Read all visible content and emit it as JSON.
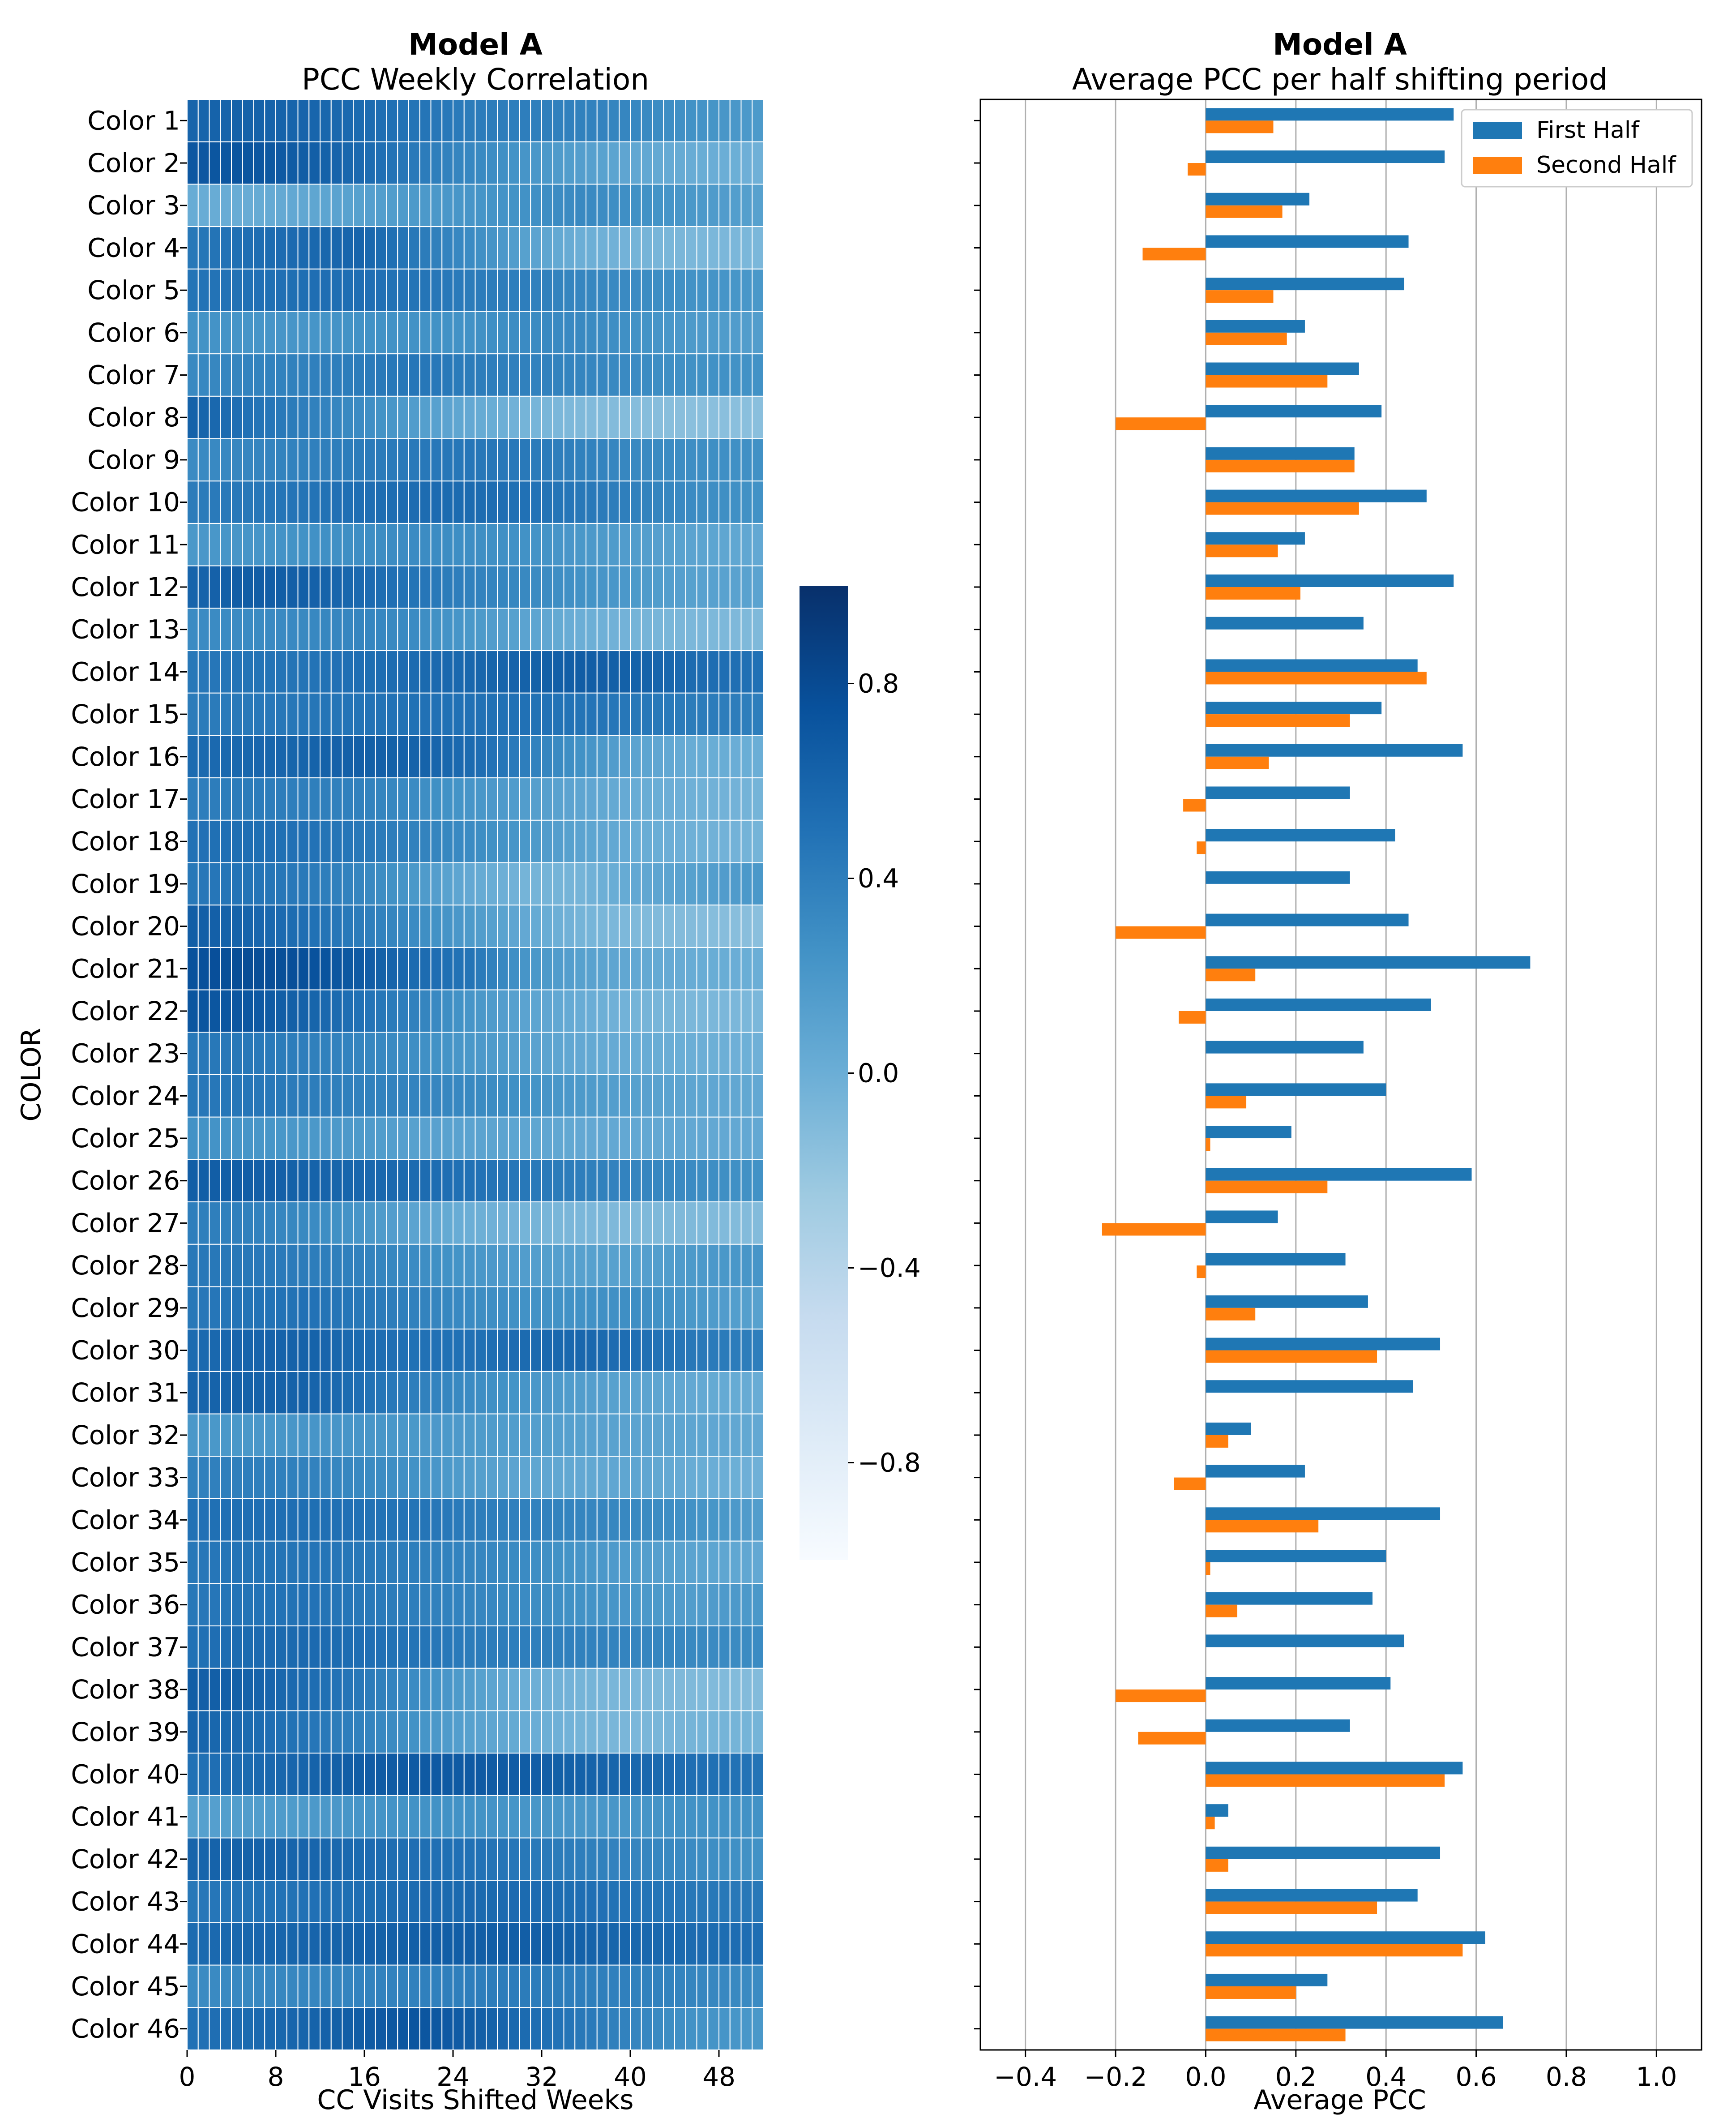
{
  "chart_data": [
    {
      "type": "heatmap",
      "title": "Model A",
      "subtitle": "PCC Weekly Correlation",
      "xlabel": "CC Visits Shifted Weeks",
      "ylabel": "COLOR",
      "x_ticks": [
        "0",
        "8",
        "16",
        "24",
        "32",
        "40",
        "48"
      ],
      "x_range": [
        0,
        52
      ],
      "rows": [
        "Color 1",
        "Color 2",
        "Color 3",
        "Color 4",
        "Color 5",
        "Color 6",
        "Color 7",
        "Color 8",
        "Color 9",
        "Color 10",
        "Color 11",
        "Color 12",
        "Color 13",
        "Color 14",
        "Color 15",
        "Color 16",
        "Color 17",
        "Color 18",
        "Color 19",
        "Color 20",
        "Color 21",
        "Color 22",
        "Color 23",
        "Color 24",
        "Color 25",
        "Color 26",
        "Color 27",
        "Color 28",
        "Color 29",
        "Color 30",
        "Color 31",
        "Color 32",
        "Color 33",
        "Color 34",
        "Color 35",
        "Color 36",
        "Color 37",
        "Color 38",
        "Color 39",
        "Color 40",
        "Color 41",
        "Color 42",
        "Color 43",
        "Color 44",
        "Color 45",
        "Color 46"
      ],
      "row_keypoints": [
        [
          0.6,
          0.62,
          0.6,
          0.55,
          0.48,
          0.42,
          0.4,
          0.38,
          0.33,
          0.25,
          0.18
        ],
        [
          0.7,
          0.72,
          0.66,
          0.56,
          0.44,
          0.33,
          0.22,
          0.14,
          0.06,
          0.02,
          -0.02
        ],
        [
          0.02,
          0.02,
          0.06,
          0.12,
          0.18,
          0.22,
          0.25,
          0.32,
          0.26,
          0.2,
          0.12
        ],
        [
          0.45,
          0.52,
          0.56,
          0.6,
          0.45,
          0.3,
          0.12,
          0.0,
          -0.05,
          -0.08,
          -0.08
        ],
        [
          0.48,
          0.5,
          0.52,
          0.52,
          0.48,
          0.42,
          0.4,
          0.34,
          0.3,
          0.25,
          0.2
        ],
        [
          0.25,
          0.22,
          0.22,
          0.25,
          0.25,
          0.25,
          0.3,
          0.32,
          0.25,
          0.18,
          0.15
        ],
        [
          0.32,
          0.36,
          0.38,
          0.42,
          0.46,
          0.42,
          0.38,
          0.35,
          0.3,
          0.26,
          0.25
        ],
        [
          0.62,
          0.5,
          0.4,
          0.3,
          0.16,
          0.05,
          -0.05,
          -0.1,
          -0.13,
          -0.15,
          -0.15
        ],
        [
          0.3,
          0.34,
          0.38,
          0.42,
          0.44,
          0.46,
          0.44,
          0.38,
          0.32,
          0.28,
          0.26
        ],
        [
          0.42,
          0.45,
          0.48,
          0.52,
          0.54,
          0.55,
          0.5,
          0.45,
          0.38,
          0.3,
          0.25
        ],
        [
          0.2,
          0.22,
          0.25,
          0.28,
          0.3,
          0.28,
          0.25,
          0.2,
          0.15,
          0.1,
          0.05
        ],
        [
          0.6,
          0.66,
          0.64,
          0.56,
          0.48,
          0.38,
          0.32,
          0.25,
          0.18,
          0.12,
          0.1
        ],
        [
          0.3,
          0.3,
          0.32,
          0.35,
          0.3,
          0.2,
          0.1,
          0.0,
          -0.05,
          -0.08,
          -0.1
        ],
        [
          0.45,
          0.48,
          0.48,
          0.52,
          0.55,
          0.58,
          0.62,
          0.66,
          0.62,
          0.55,
          0.5
        ],
        [
          0.42,
          0.44,
          0.46,
          0.48,
          0.5,
          0.5,
          0.5,
          0.48,
          0.45,
          0.42,
          0.4
        ],
        [
          0.55,
          0.58,
          0.6,
          0.64,
          0.62,
          0.55,
          0.4,
          0.25,
          0.1,
          0.02,
          0.0
        ],
        [
          0.4,
          0.42,
          0.4,
          0.38,
          0.3,
          0.22,
          0.15,
          0.08,
          0.02,
          -0.02,
          -0.05
        ],
        [
          0.5,
          0.52,
          0.5,
          0.45,
          0.38,
          0.3,
          0.2,
          0.1,
          0.02,
          -0.02,
          -0.05
        ],
        [
          0.45,
          0.48,
          0.44,
          0.35,
          0.2,
          0.05,
          -0.05,
          -0.05,
          0.05,
          0.12,
          0.2
        ],
        [
          0.65,
          0.6,
          0.52,
          0.42,
          0.3,
          0.18,
          0.05,
          -0.05,
          -0.1,
          -0.12,
          -0.15
        ],
        [
          0.75,
          0.78,
          0.76,
          0.68,
          0.55,
          0.48,
          0.22,
          0.12,
          0.05,
          0.02,
          0.0
        ],
        [
          0.72,
          0.7,
          0.62,
          0.5,
          0.38,
          0.22,
          0.1,
          0.02,
          -0.05,
          -0.08,
          -0.08
        ],
        [
          0.45,
          0.45,
          0.4,
          0.35,
          0.28,
          0.2,
          0.12,
          0.05,
          0.02,
          0.0,
          -0.02
        ],
        [
          0.45,
          0.46,
          0.42,
          0.38,
          0.36,
          0.32,
          0.25,
          0.18,
          0.12,
          0.08,
          0.05
        ],
        [
          0.25,
          0.22,
          0.2,
          0.18,
          0.12,
          0.1,
          0.08,
          0.05,
          0.05,
          0.05,
          0.05
        ],
        [
          0.65,
          0.65,
          0.62,
          0.58,
          0.55,
          0.5,
          0.45,
          0.4,
          0.35,
          0.3,
          0.25
        ],
        [
          0.4,
          0.38,
          0.32,
          0.22,
          0.1,
          0.0,
          -0.05,
          -0.08,
          -0.1,
          -0.1,
          -0.12
        ],
        [
          0.45,
          0.45,
          0.42,
          0.38,
          0.3,
          0.22,
          0.15,
          0.12,
          0.12,
          0.18,
          0.22
        ],
        [
          0.45,
          0.48,
          0.5,
          0.45,
          0.38,
          0.3,
          0.25,
          0.25,
          0.28,
          0.2,
          0.12
        ],
        [
          0.55,
          0.6,
          0.62,
          0.55,
          0.5,
          0.5,
          0.55,
          0.58,
          0.52,
          0.45,
          0.4
        ],
        [
          0.6,
          0.62,
          0.62,
          0.52,
          0.4,
          0.3,
          0.22,
          0.15,
          0.1,
          0.05,
          0.02
        ],
        [
          0.2,
          0.2,
          0.22,
          0.22,
          0.2,
          0.18,
          0.15,
          0.12,
          0.1,
          0.08,
          0.05
        ],
        [
          0.38,
          0.4,
          0.38,
          0.32,
          0.25,
          0.15,
          0.08,
          0.05,
          0.08,
          0.02,
          -0.02
        ],
        [
          0.5,
          0.52,
          0.52,
          0.5,
          0.48,
          0.42,
          0.38,
          0.35,
          0.32,
          0.25,
          0.15
        ],
        [
          0.45,
          0.48,
          0.48,
          0.45,
          0.4,
          0.35,
          0.3,
          0.22,
          0.15,
          0.1,
          0.05
        ],
        [
          0.45,
          0.48,
          0.5,
          0.45,
          0.4,
          0.35,
          0.3,
          0.25,
          0.2,
          0.15,
          0.2
        ],
        [
          0.5,
          0.55,
          0.56,
          0.52,
          0.48,
          0.42,
          0.4,
          0.38,
          0.35,
          0.32,
          0.3
        ],
        [
          0.65,
          0.62,
          0.55,
          0.45,
          0.3,
          0.15,
          0.0,
          -0.05,
          -0.08,
          -0.1,
          -0.12
        ],
        [
          0.6,
          0.55,
          0.48,
          0.38,
          0.25,
          0.12,
          0.02,
          -0.05,
          -0.08,
          -0.05,
          -0.05
        ],
        [
          0.5,
          0.55,
          0.6,
          0.66,
          0.68,
          0.68,
          0.66,
          0.62,
          0.58,
          0.52,
          0.48
        ],
        [
          0.12,
          0.15,
          0.18,
          0.22,
          0.25,
          0.25,
          0.22,
          0.2,
          0.22,
          0.25,
          0.25
        ],
        [
          0.6,
          0.62,
          0.6,
          0.55,
          0.52,
          0.5,
          0.45,
          0.4,
          0.35,
          0.3,
          0.25
        ],
        [
          0.45,
          0.48,
          0.5,
          0.52,
          0.55,
          0.56,
          0.55,
          0.52,
          0.48,
          0.45,
          0.45
        ],
        [
          0.55,
          0.58,
          0.6,
          0.62,
          0.64,
          0.65,
          0.65,
          0.62,
          0.58,
          0.55,
          0.52
        ],
        [
          0.3,
          0.32,
          0.34,
          0.36,
          0.38,
          0.4,
          0.42,
          0.4,
          0.38,
          0.35,
          0.3
        ],
        [
          0.5,
          0.55,
          0.6,
          0.66,
          0.72,
          0.66,
          0.55,
          0.45,
          0.35,
          0.25,
          0.2
        ]
      ],
      "row_keypoint_weeks": [
        0,
        5,
        10,
        15,
        20,
        25,
        30,
        35,
        40,
        45,
        51
      ],
      "colorbar": {
        "range": [
          -1,
          1
        ],
        "ticks": [
          "0.8",
          "0.4",
          "0.0",
          "−0.4",
          "−0.8"
        ],
        "tick_values": [
          0.8,
          0.4,
          0.0,
          -0.4,
          -0.8
        ]
      }
    },
    {
      "type": "bar",
      "orientation": "horizontal",
      "title": "Model A",
      "subtitle": "Average PCC per half shifting period",
      "xlabel": "Average PCC",
      "xlim": [
        -0.5,
        1.1
      ],
      "x_ticks": [
        "−0.4",
        "−0.2",
        "0.0",
        "0.2",
        "0.4",
        "0.6",
        "0.8",
        "1.0"
      ],
      "x_tick_values": [
        -0.4,
        -0.2,
        0.0,
        0.2,
        0.4,
        0.6,
        0.8,
        1.0
      ],
      "grid": true,
      "legend": "top-right",
      "categories": [
        "Color 1",
        "Color 2",
        "Color 3",
        "Color 4",
        "Color 5",
        "Color 6",
        "Color 7",
        "Color 8",
        "Color 9",
        "Color 10",
        "Color 11",
        "Color 12",
        "Color 13",
        "Color 14",
        "Color 15",
        "Color 16",
        "Color 17",
        "Color 18",
        "Color 19",
        "Color 20",
        "Color 21",
        "Color 22",
        "Color 23",
        "Color 24",
        "Color 25",
        "Color 26",
        "Color 27",
        "Color 28",
        "Color 29",
        "Color 30",
        "Color 31",
        "Color 32",
        "Color 33",
        "Color 34",
        "Color 35",
        "Color 36",
        "Color 37",
        "Color 38",
        "Color 39",
        "Color 40",
        "Color 41",
        "Color 42",
        "Color 43",
        "Color 44",
        "Color 45",
        "Color 46"
      ],
      "series": [
        {
          "name": "First Half",
          "color": "#1f77b4",
          "values": [
            0.55,
            0.53,
            0.23,
            0.45,
            0.44,
            0.22,
            0.34,
            0.39,
            0.33,
            0.49,
            0.22,
            0.55,
            0.35,
            0.47,
            0.39,
            0.57,
            0.32,
            0.42,
            0.32,
            0.45,
            0.72,
            0.5,
            0.35,
            0.4,
            0.19,
            0.59,
            0.16,
            0.31,
            0.36,
            0.52,
            0.46,
            0.1,
            0.22,
            0.52,
            0.4,
            0.37,
            0.44,
            0.41,
            0.32,
            0.57,
            0.05,
            0.52,
            0.47,
            0.62,
            0.27,
            0.66
          ]
        },
        {
          "name": "Second Half",
          "color": "#ff7f0e",
          "values": [
            0.15,
            -0.04,
            0.17,
            -0.14,
            0.15,
            0.18,
            0.27,
            -0.2,
            0.33,
            0.34,
            0.16,
            0.21,
            0.0,
            0.49,
            0.32,
            0.14,
            -0.05,
            -0.02,
            0.0,
            -0.2,
            0.11,
            -0.06,
            0.0,
            0.09,
            0.01,
            0.27,
            -0.23,
            -0.02,
            0.11,
            0.38,
            0.0,
            0.05,
            -0.07,
            0.25,
            0.01,
            0.07,
            0.0,
            -0.2,
            -0.15,
            0.53,
            0.02,
            0.05,
            0.38,
            0.57,
            0.2,
            0.31
          ]
        }
      ]
    }
  ]
}
